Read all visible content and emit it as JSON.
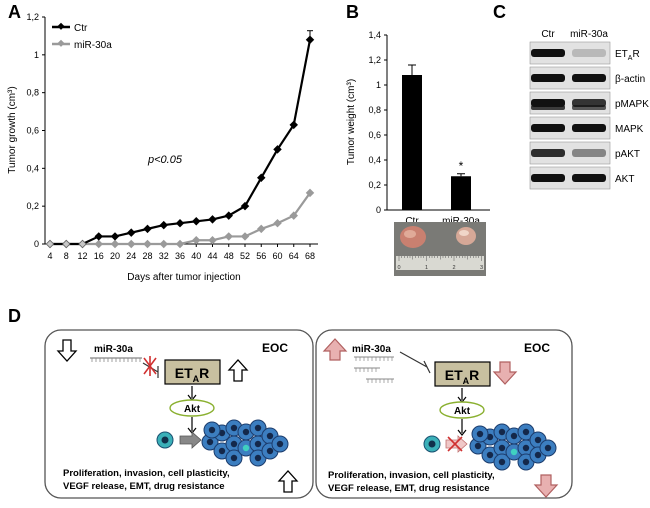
{
  "panel_labels": {
    "a": "A",
    "b": "B",
    "c": "C",
    "d": "D"
  },
  "chart_data": [
    {
      "type": "line",
      "panel": "A",
      "ylabel": "Tumor growth (cm³)",
      "xlabel": "Days after tumor injection",
      "x": [
        4,
        8,
        12,
        16,
        20,
        24,
        28,
        32,
        36,
        40,
        44,
        48,
        52,
        56,
        60,
        64,
        68
      ],
      "ylim": [
        0,
        1.2
      ],
      "yticks": [
        "0",
        "0,2",
        "0,4",
        "0,6",
        "0,8",
        "1",
        "1,2"
      ],
      "xticks": [
        "4",
        "8",
        "12",
        "16",
        "20",
        "24",
        "28",
        "32",
        "36",
        "40",
        "44",
        "48",
        "52",
        "56",
        "60",
        "64",
        "68"
      ],
      "annotation": "p<0.05",
      "series": [
        {
          "name": "Ctr",
          "color": "#000000",
          "values": [
            0,
            0,
            0,
            0.04,
            0.04,
            0.06,
            0.08,
            0.1,
            0.11,
            0.12,
            0.13,
            0.15,
            0.2,
            0.35,
            0.5,
            0.63,
            1.08
          ]
        },
        {
          "name": "miR-30a",
          "color": "#9a9a9a",
          "values": [
            0,
            0,
            0,
            0,
            0,
            0,
            0,
            0,
            0,
            0.02,
            0.02,
            0.04,
            0.04,
            0.08,
            0.11,
            0.15,
            0.27
          ]
        }
      ],
      "legend": "top-left",
      "grid": false
    },
    {
      "type": "bar",
      "panel": "B",
      "ylabel": "Tumor weight (cm³)",
      "categories": [
        "Ctr",
        "miR-30a"
      ],
      "values": [
        1.08,
        0.27
      ],
      "errors": [
        0.08,
        0.02
      ],
      "significance": [
        "",
        "*"
      ],
      "ylim": [
        0,
        1.4
      ],
      "yticks": [
        "0",
        "0,2",
        "0,4",
        "0,6",
        "0,8",
        "1",
        "1,2",
        "1,4"
      ],
      "photo_scale": [
        "0",
        "1",
        "2",
        "3"
      ],
      "grid": false
    }
  ],
  "western": {
    "lanes": [
      "Ctr",
      "miR-30a"
    ],
    "bands": [
      {
        "label": "ETAR",
        "base": "ET",
        "sub": "A",
        "tail": "R",
        "ctr": 1.0,
        "mir": 0.05
      },
      {
        "label": "β-actin",
        "ctr": 1.0,
        "mir": 1.0
      },
      {
        "label": "pMAPK",
        "ctr": 1.0,
        "mir": 0.8
      },
      {
        "label": "MAPK",
        "ctr": 1.0,
        "mir": 1.0
      },
      {
        "label": "pAKT",
        "ctr": 0.85,
        "mir": 0.35
      },
      {
        "label": "AKT",
        "ctr": 1.0,
        "mir": 1.0
      }
    ]
  },
  "diagram": {
    "left": {
      "eoc": "EOC",
      "mirna": "miR-30a",
      "receptor": {
        "base": "ET",
        "sub": "A",
        "tail": "R"
      },
      "akt": "Akt",
      "outcome_1": "Proliferation, invasion, cell plasticity,",
      "outcome_2": "VEGF release, EMT, drug resistance"
    },
    "right": {
      "eoc": "EOC",
      "mirna": "miR-30a",
      "receptor": {
        "base": "ET",
        "sub": "A",
        "tail": "R"
      },
      "akt": "Akt",
      "outcome_1": "Proliferation, invasion, cell plasticity,",
      "outcome_2": "VEGF release, EMT, drug resistance"
    }
  },
  "colors": {
    "ctr": "#000000",
    "mir": "#9a9a9a",
    "receptor_box": "#c8c0a0",
    "akt_ellipse": "#8ab030",
    "cell_blue": "#3c7ec0",
    "up_red": "#e8b0b0",
    "red_x": "#d03030"
  }
}
